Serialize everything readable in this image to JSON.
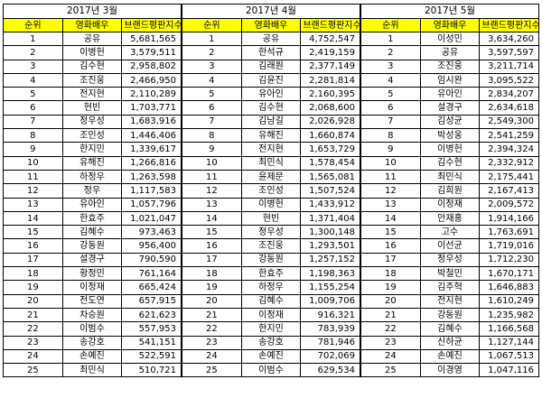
{
  "tables": [
    {
      "title": "2017년 3월",
      "headers": [
        "순위",
        "영화배우",
        "브랜드평판지수"
      ],
      "rows": [
        [
          "1",
          "공유",
          "5,681,565"
        ],
        [
          "2",
          "이병헌",
          "3,579,511"
        ],
        [
          "3",
          "김수현",
          "2,958,802"
        ],
        [
          "4",
          "조진웅",
          "2,466,950"
        ],
        [
          "5",
          "전지현",
          "2,110,289"
        ],
        [
          "6",
          "현빈",
          "1,703,771"
        ],
        [
          "7",
          "정우성",
          "1,683,916"
        ],
        [
          "8",
          "조인성",
          "1,446,406"
        ],
        [
          "9",
          "한지민",
          "1,339,617"
        ],
        [
          "10",
          "유해진",
          "1,266,816"
        ],
        [
          "11",
          "하정우",
          "1,263,598"
        ],
        [
          "12",
          "정우",
          "1,117,583"
        ],
        [
          "13",
          "유아인",
          "1,057,796"
        ],
        [
          "14",
          "한효주",
          "1,021,047"
        ],
        [
          "15",
          "김혜수",
          "973,463"
        ],
        [
          "16",
          "강동원",
          "956,400"
        ],
        [
          "17",
          "설경구",
          "790,590"
        ],
        [
          "18",
          "황정민",
          "761,164"
        ],
        [
          "19",
          "이정재",
          "665,424"
        ],
        [
          "20",
          "전도연",
          "657,915"
        ],
        [
          "21",
          "차승원",
          "621,623"
        ],
        [
          "22",
          "이범수",
          "557,953"
        ],
        [
          "23",
          "송강호",
          "541,151"
        ],
        [
          "24",
          "손예진",
          "522,591"
        ],
        [
          "25",
          "최민식",
          "510,721"
        ]
      ]
    },
    {
      "title": "2017년 4월",
      "headers": [
        "순위",
        "영화배우",
        "브랜드평판지수"
      ],
      "rows": [
        [
          "1",
          "공유",
          "4,752,547"
        ],
        [
          "2",
          "한석규",
          "2,419,159"
        ],
        [
          "3",
          "김래원",
          "2,377,149"
        ],
        [
          "4",
          "김윤진",
          "2,281,814"
        ],
        [
          "5",
          "유아인",
          "2,160,395"
        ],
        [
          "6",
          "김수현",
          "2,068,600"
        ],
        [
          "7",
          "김남길",
          "2,026,928"
        ],
        [
          "8",
          "유해진",
          "1,660,874"
        ],
        [
          "9",
          "전지현",
          "1,653,729"
        ],
        [
          "10",
          "최민식",
          "1,578,454"
        ],
        [
          "11",
          "윤제문",
          "1,565,081"
        ],
        [
          "12",
          "조인성",
          "1,507,524"
        ],
        [
          "13",
          "이병헌",
          "1,433,912"
        ],
        [
          "14",
          "현빈",
          "1,371,404"
        ],
        [
          "15",
          "정우성",
          "1,300,148"
        ],
        [
          "16",
          "조진웅",
          "1,293,501"
        ],
        [
          "17",
          "강동원",
          "1,257,152"
        ],
        [
          "18",
          "한효주",
          "1,198,363"
        ],
        [
          "19",
          "하정우",
          "1,155,254"
        ],
        [
          "20",
          "김혜수",
          "1,009,706"
        ],
        [
          "21",
          "이정재",
          "916,321"
        ],
        [
          "22",
          "한지민",
          "783,939"
        ],
        [
          "23",
          "송강호",
          "781,946"
        ],
        [
          "24",
          "손예진",
          "702,069"
        ],
        [
          "25",
          "이범수",
          "629,534"
        ]
      ]
    },
    {
      "title": "2017년 5월",
      "headers": [
        "순위",
        "영화배우",
        "브랜드평판지수"
      ],
      "rows": [
        [
          "1",
          "이성민",
          "3,634,260"
        ],
        [
          "2",
          "공유",
          "3,597,597"
        ],
        [
          "3",
          "조진웅",
          "3,211,714"
        ],
        [
          "4",
          "임시완",
          "3,095,522"
        ],
        [
          "5",
          "유아인",
          "2,834,207"
        ],
        [
          "6",
          "설경구",
          "2,634,618"
        ],
        [
          "7",
          "김성균",
          "2,549,300"
        ],
        [
          "8",
          "박성웅",
          "2,541,259"
        ],
        [
          "9",
          "이병헌",
          "2,394,324"
        ],
        [
          "10",
          "김수현",
          "2,332,912"
        ],
        [
          "11",
          "최민식",
          "2,175,441"
        ],
        [
          "12",
          "김희원",
          "2,167,413"
        ],
        [
          "13",
          "이정재",
          "2,009,572"
        ],
        [
          "14",
          "안재홍",
          "1,914,166"
        ],
        [
          "15",
          "고수",
          "1,763,691"
        ],
        [
          "16",
          "이선균",
          "1,719,016"
        ],
        [
          "17",
          "정우성",
          "1,712,230"
        ],
        [
          "18",
          "박철민",
          "1,670,171"
        ],
        [
          "19",
          "김주혁",
          "1,646,883"
        ],
        [
          "20",
          "전지현",
          "1,610,249"
        ],
        [
          "21",
          "강동원",
          "1,235,982"
        ],
        [
          "22",
          "김혜수",
          "1,166,568"
        ],
        [
          "23",
          "신하균",
          "1,127,144"
        ],
        [
          "24",
          "손예진",
          "1,067,513"
        ],
        [
          "25",
          "이경영",
          "1,047,116"
        ]
      ]
    }
  ]
}
